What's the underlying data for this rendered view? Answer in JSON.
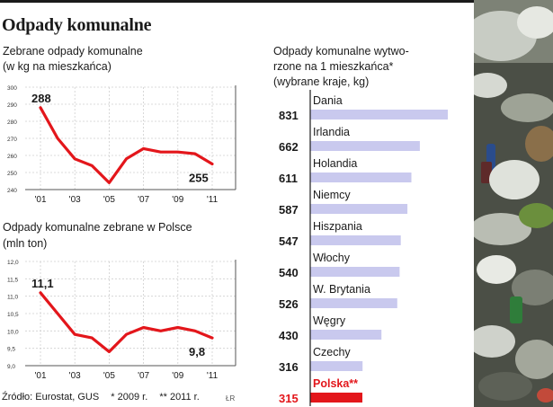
{
  "title": "Odpady komunalne",
  "chart_data": [
    {
      "type": "line",
      "title": "Zebrane odpady komunalne",
      "subtitle": "(w kg na mieszkańca)",
      "x": [
        "'01",
        "'02",
        "'03",
        "'04",
        "'05",
        "'06",
        "'07",
        "'08",
        "'09",
        "'10",
        "'11"
      ],
      "x_tick_labels": [
        "'01",
        "'03",
        "'05",
        "'07",
        "'09",
        "'11"
      ],
      "values": [
        288,
        270,
        258,
        254,
        244,
        258,
        264,
        262,
        262,
        261,
        255
      ],
      "y_ticks": [
        "240",
        "250",
        "260",
        "270",
        "280",
        "290",
        "300"
      ],
      "ylim": [
        240,
        300
      ],
      "labels": {
        "first": "288",
        "last": "255"
      },
      "color": "#e3161b",
      "grid": true
    },
    {
      "type": "line",
      "title": "Odpady komunalne zebrane w Polsce",
      "subtitle": "(mln ton)",
      "x": [
        "'01",
        "'02",
        "'03",
        "'04",
        "'05",
        "'06",
        "'07",
        "'08",
        "'09",
        "'10",
        "'11"
      ],
      "x_tick_labels": [
        "'01",
        "'03",
        "'05",
        "'07",
        "'09",
        "'11"
      ],
      "values": [
        11.1,
        10.5,
        9.9,
        9.8,
        9.4,
        9.9,
        10.1,
        10.0,
        10.1,
        10.0,
        9.8
      ],
      "y_ticks": [
        "9,0",
        "9,5",
        "10,0",
        "10,5",
        "11,0",
        "11,5",
        "12,0"
      ],
      "ylim": [
        9.0,
        12.0
      ],
      "labels": {
        "first": "11,1",
        "last": "9,8"
      },
      "color": "#e3161b",
      "grid": true
    },
    {
      "type": "bar",
      "orientation": "horizontal",
      "title": "Odpady komunalne wytwo-\nrzone na 1 mieszkańca*",
      "subtitle": "(wybrane kraje, kg)",
      "categories": [
        "Dania",
        "Irlandia",
        "Holandia",
        "Niemcy",
        "Hiszpania",
        "Włochy",
        "W. Brytania",
        "Węgry",
        "Czechy",
        "Polska**"
      ],
      "values": [
        831,
        662,
        611,
        587,
        547,
        540,
        526,
        430,
        316,
        315
      ],
      "value_labels": [
        "831",
        "662",
        "611",
        "587",
        "547",
        "540",
        "526",
        "430",
        "316",
        "315"
      ],
      "bar_color": "#c9c9ee",
      "highlight": {
        "category": "Polska**",
        "color": "#e3161b"
      }
    }
  ],
  "source": {
    "text": "Źródło: Eurostat, GUS",
    "note1": "* 2009 r.",
    "note2": "** 2011 r.",
    "credit": "ŁR"
  },
  "photo": {
    "subject": "landfill-waste-photo"
  }
}
